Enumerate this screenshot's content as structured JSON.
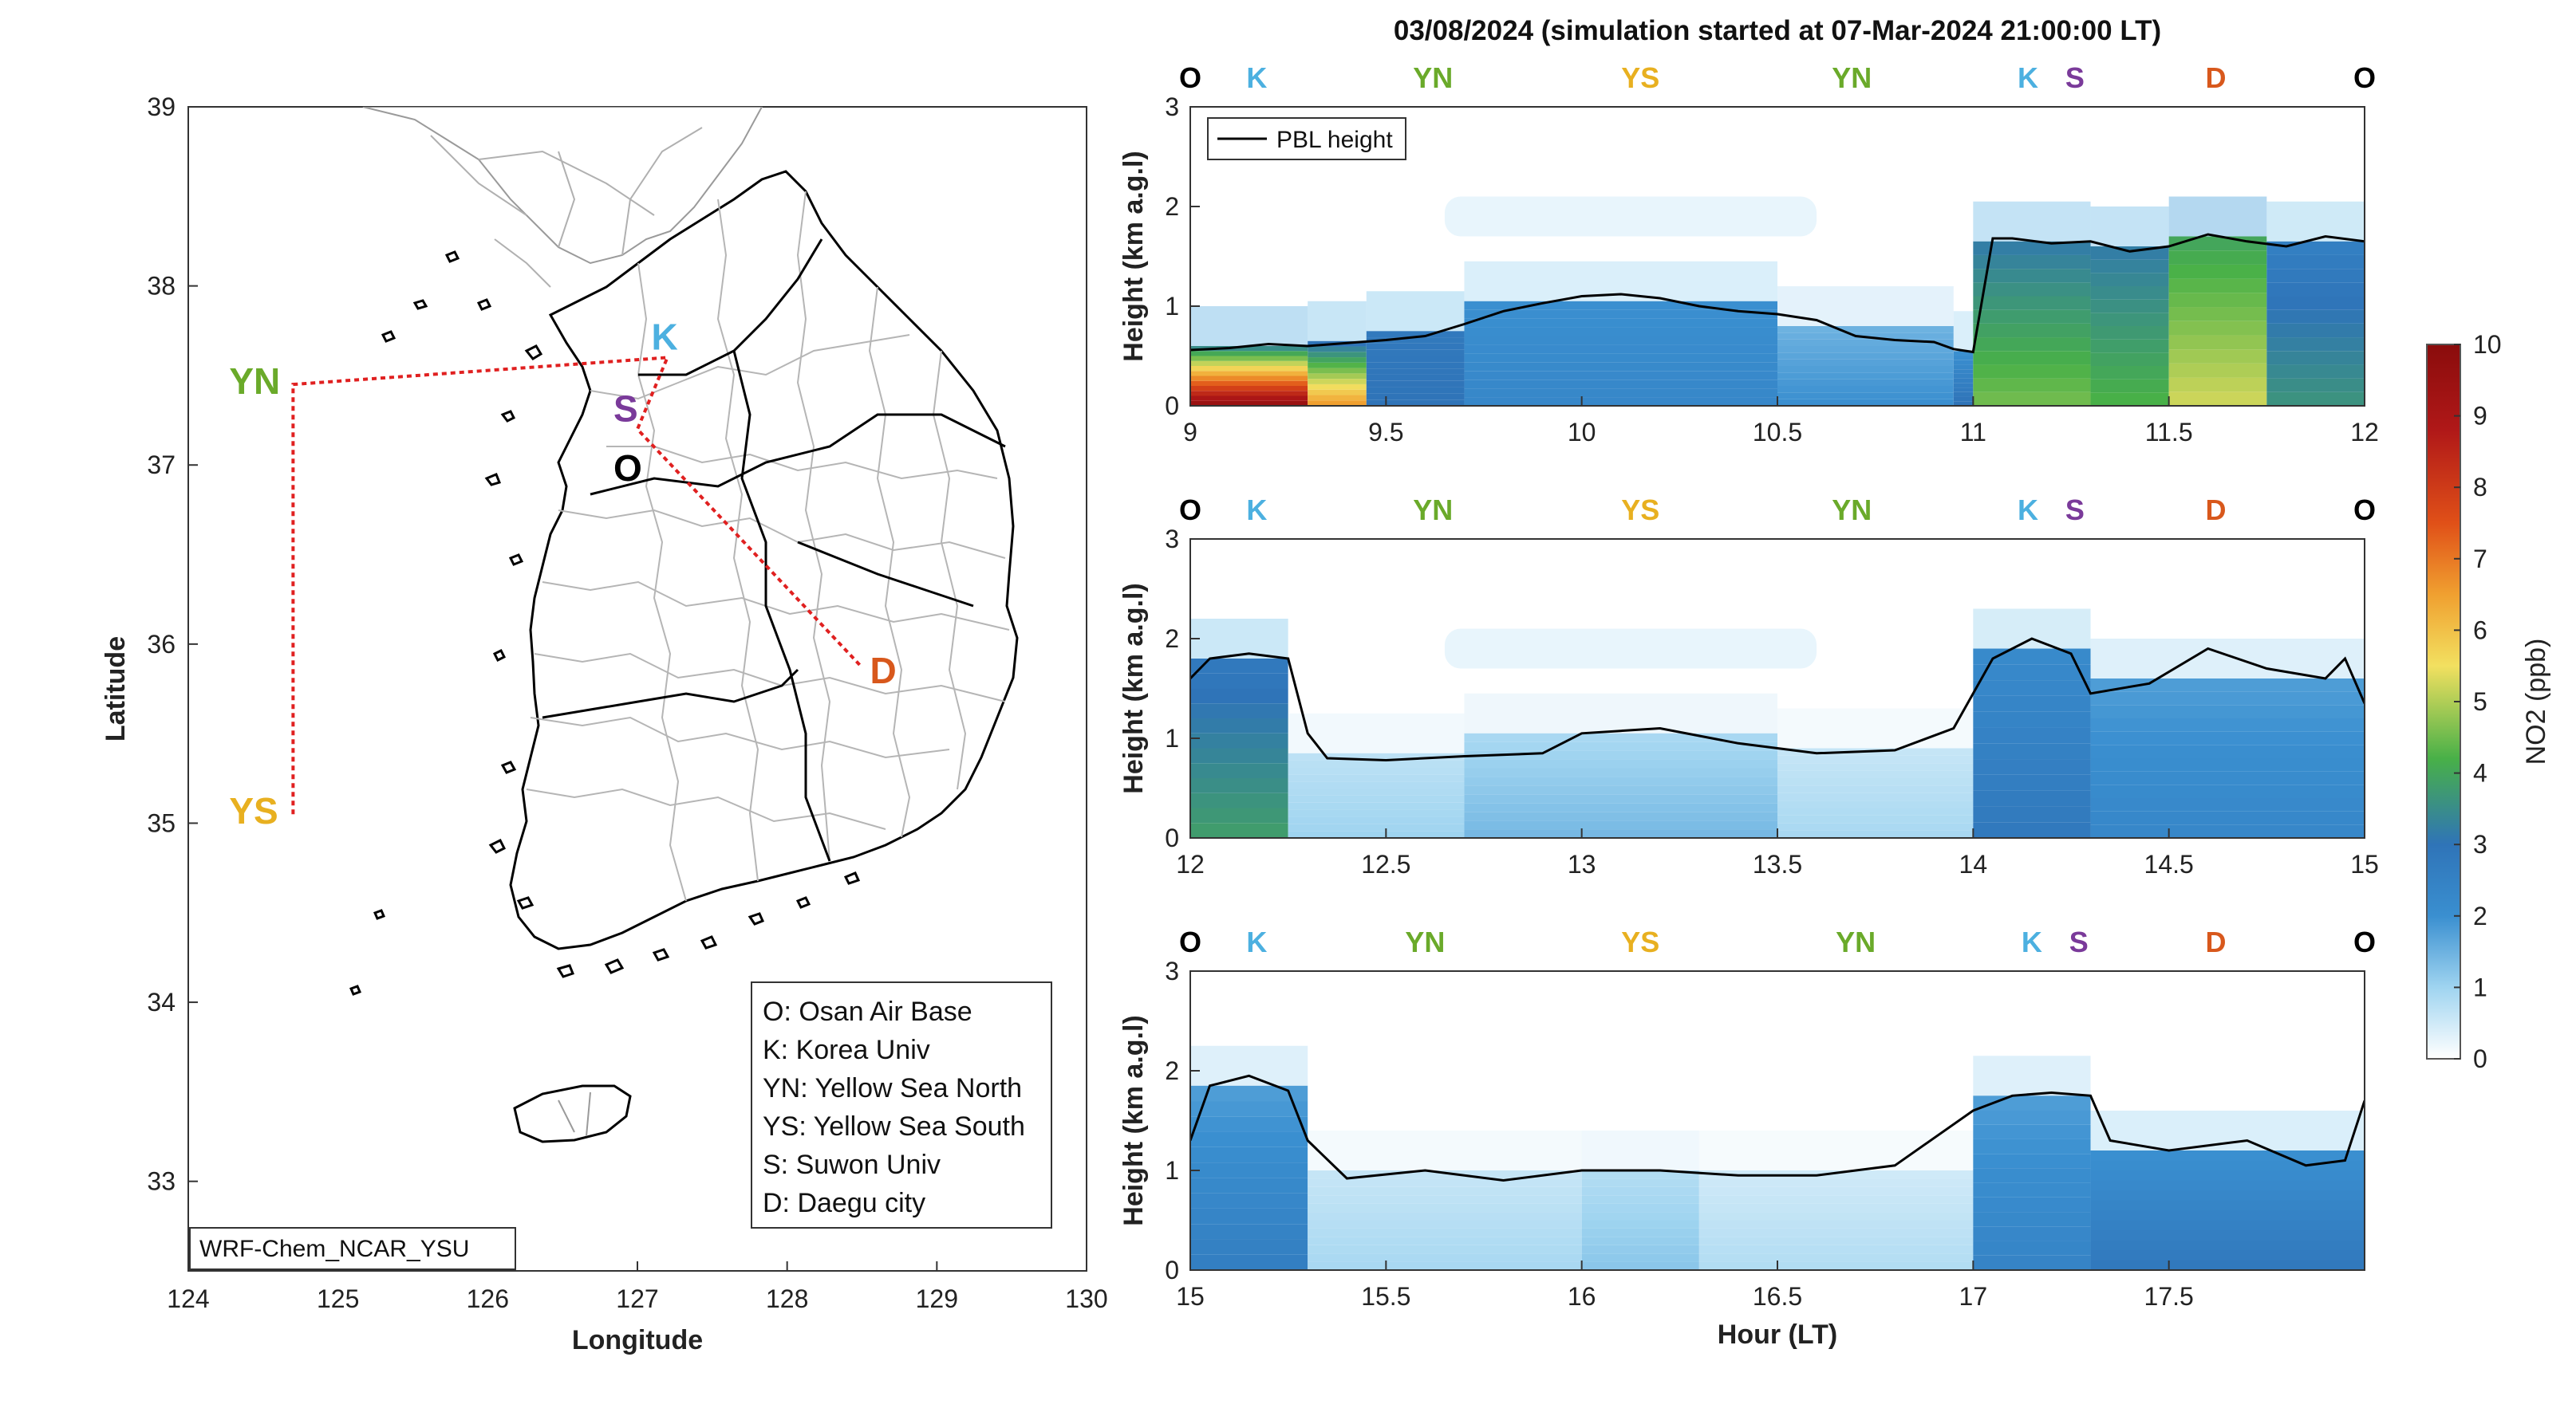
{
  "figure": {
    "title": "03/08/2024 (simulation started at 07-Mar-2024 21:00:00 LT)",
    "model_label": "WRF-Chem_NCAR_YSU"
  },
  "map": {
    "xlabel": "Longitude",
    "ylabel": "Latitude",
    "xlim": [
      124,
      130
    ],
    "ylim": [
      32.5,
      39
    ],
    "xticks": [
      "124",
      "125",
      "126",
      "127",
      "128",
      "129",
      "130"
    ],
    "yticks": [
      "33",
      "34",
      "35",
      "36",
      "37",
      "38",
      "39"
    ],
    "sites": [
      {
        "code": "YN",
        "name": "Yellow Sea North",
        "color": "#6aaa2a",
        "lon": 124.7,
        "lat": 37.45
      },
      {
        "code": "YS",
        "name": "Yellow Sea South",
        "color": "#e8b020",
        "lon": 124.7,
        "lat": 35.05
      },
      {
        "code": "K",
        "name": "Korea Univ",
        "color": "#4cb0e0",
        "lon": 127.2,
        "lat": 37.6
      },
      {
        "code": "S",
        "name": "Suwon Univ",
        "color": "#7a3a9a",
        "lon": 127.0,
        "lat": 37.2
      },
      {
        "code": "O",
        "name": "Osan Air Base",
        "color": "#000000",
        "lon": 127.0,
        "lat": 37.1
      },
      {
        "code": "D",
        "name": "Daegu city",
        "color": "#d8581c",
        "lon": 128.5,
        "lat": 35.87
      }
    ],
    "legend_entries": [
      "O: Osan Air Base",
      "K: Korea Univ",
      "YN: Yellow Sea North",
      "YS: Yellow Sea South",
      "S: Suwon Univ",
      "D: Daegu city"
    ],
    "route_color": "#e02020"
  },
  "chart_data": [
    {
      "type": "heatmap",
      "panel": 1,
      "xlabel": "",
      "ylabel": "Height (km a.g.l)",
      "xlim": [
        9,
        12
      ],
      "ylim": [
        0,
        3
      ],
      "xticks": [
        "9",
        "9.5",
        "10",
        "10.5",
        "11",
        "11.5",
        "12"
      ],
      "yticks": [
        "0",
        "1",
        "2",
        "3"
      ],
      "site_markers": [
        {
          "code": "O",
          "x": 9.0
        },
        {
          "code": "K",
          "x": 9.17
        },
        {
          "code": "YN",
          "x": 9.62
        },
        {
          "code": "YS",
          "x": 10.15
        },
        {
          "code": "YN",
          "x": 10.69
        },
        {
          "code": "K",
          "x": 11.14
        },
        {
          "code": "S",
          "x": 11.26
        },
        {
          "code": "D",
          "x": 11.62
        },
        {
          "code": "O",
          "x": 12.0
        }
      ],
      "series": [
        {
          "name": "PBL height",
          "x": [
            9.0,
            9.1,
            9.2,
            9.3,
            9.4,
            9.5,
            9.6,
            9.7,
            9.8,
            9.9,
            10.0,
            10.1,
            10.2,
            10.3,
            10.4,
            10.5,
            10.6,
            10.7,
            10.8,
            10.9,
            10.95,
            11.0,
            11.05,
            11.1,
            11.2,
            11.3,
            11.4,
            11.5,
            11.6,
            11.7,
            11.8,
            11.9,
            12.0
          ],
          "y": [
            0.56,
            0.58,
            0.62,
            0.6,
            0.63,
            0.66,
            0.7,
            0.82,
            0.95,
            1.03,
            1.1,
            1.12,
            1.08,
            1.0,
            0.95,
            0.92,
            0.86,
            0.7,
            0.66,
            0.64,
            0.57,
            0.54,
            1.68,
            1.68,
            1.63,
            1.65,
            1.55,
            1.6,
            1.72,
            1.65,
            1.6,
            1.7,
            1.65
          ]
        }
      ],
      "no2_columns": [
        {
          "x": [
            9.0,
            9.3
          ],
          "low": 9.5,
          "mid": 3.5,
          "top": 0.6
        },
        {
          "x": [
            9.3,
            9.45
          ],
          "low": 6.5,
          "mid": 3.0,
          "top": 0.65
        },
        {
          "x": [
            9.45,
            9.7
          ],
          "low": 3.0,
          "mid": 2.8,
          "top": 0.75
        },
        {
          "x": [
            9.7,
            10.5
          ],
          "low": 2.3,
          "mid": 2.0,
          "top": 1.05
        },
        {
          "x": [
            10.5,
            10.95
          ],
          "low": 2.0,
          "mid": 1.5,
          "top": 0.8
        },
        {
          "x": [
            10.95,
            11.0
          ],
          "low": 3.0,
          "mid": 2.0,
          "top": 0.55
        },
        {
          "x": [
            11.0,
            11.3
          ],
          "low": 4.5,
          "mid": 3.2,
          "top": 1.65
        },
        {
          "x": [
            11.3,
            11.5
          ],
          "low": 4.2,
          "mid": 3.2,
          "top": 1.6
        },
        {
          "x": [
            11.5,
            11.75
          ],
          "low": 5.2,
          "mid": 4.0,
          "top": 1.7
        },
        {
          "x": [
            11.75,
            12.0
          ],
          "low": 3.6,
          "mid": 2.6,
          "top": 1.65
        }
      ]
    },
    {
      "type": "heatmap",
      "panel": 2,
      "xlabel": "",
      "ylabel": "Height (km a.g.l)",
      "xlim": [
        12,
        15
      ],
      "ylim": [
        0,
        3
      ],
      "xticks": [
        "12",
        "12.5",
        "13",
        "13.5",
        "14",
        "14.5",
        "15"
      ],
      "yticks": [
        "0",
        "1",
        "2",
        "3"
      ],
      "site_markers": [
        {
          "code": "O",
          "x": 12.0
        },
        {
          "code": "K",
          "x": 12.17
        },
        {
          "code": "YN",
          "x": 12.62
        },
        {
          "code": "YS",
          "x": 13.15
        },
        {
          "code": "YN",
          "x": 13.69
        },
        {
          "code": "K",
          "x": 14.14
        },
        {
          "code": "S",
          "x": 14.26
        },
        {
          "code": "D",
          "x": 14.62
        },
        {
          "code": "O",
          "x": 15.0
        }
      ],
      "series": [
        {
          "name": "PBL height",
          "x": [
            12.0,
            12.05,
            12.15,
            12.25,
            12.3,
            12.35,
            12.5,
            12.7,
            12.9,
            13.0,
            13.2,
            13.4,
            13.6,
            13.8,
            13.95,
            14.05,
            14.15,
            14.25,
            14.3,
            14.45,
            14.6,
            14.75,
            14.9,
            14.95,
            15.0
          ],
          "y": [
            1.6,
            1.8,
            1.85,
            1.8,
            1.05,
            0.8,
            0.78,
            0.82,
            0.85,
            1.05,
            1.1,
            0.95,
            0.85,
            0.88,
            1.1,
            1.8,
            2.0,
            1.85,
            1.45,
            1.55,
            1.9,
            1.7,
            1.6,
            1.8,
            1.35
          ]
        }
      ],
      "no2_columns": [
        {
          "x": [
            12.0,
            12.25
          ],
          "low": 3.8,
          "mid": 2.8,
          "top": 1.8
        },
        {
          "x": [
            12.25,
            12.7
          ],
          "low": 1.0,
          "mid": 0.7,
          "top": 0.85
        },
        {
          "x": [
            12.7,
            13.5
          ],
          "low": 1.4,
          "mid": 0.9,
          "top": 1.05
        },
        {
          "x": [
            13.5,
            14.0
          ],
          "low": 0.9,
          "mid": 0.6,
          "top": 0.9
        },
        {
          "x": [
            14.0,
            14.3
          ],
          "low": 2.8,
          "mid": 2.2,
          "top": 1.9
        },
        {
          "x": [
            14.3,
            15.0
          ],
          "low": 2.3,
          "mid": 1.8,
          "top": 1.6
        }
      ]
    },
    {
      "type": "heatmap",
      "panel": 3,
      "xlabel": "Hour (LT)",
      "ylabel": "Height (km a.g.l)",
      "xlim": [
        15,
        18
      ],
      "ylim": [
        0,
        3
      ],
      "xticks": [
        "15",
        "15.5",
        "16",
        "16.5",
        "17",
        "17.5"
      ],
      "yticks": [
        "0",
        "1",
        "2",
        "3"
      ],
      "site_markers": [
        {
          "code": "O",
          "x": 15.0
        },
        {
          "code": "K",
          "x": 15.17
        },
        {
          "code": "YN",
          "x": 15.6
        },
        {
          "code": "YS",
          "x": 16.15
        },
        {
          "code": "YN",
          "x": 16.7
        },
        {
          "code": "K",
          "x": 17.15
        },
        {
          "code": "S",
          "x": 17.27
        },
        {
          "code": "D",
          "x": 17.62
        },
        {
          "code": "O",
          "x": 18.0
        }
      ],
      "series": [
        {
          "name": "PBL height",
          "x": [
            15.0,
            15.05,
            15.15,
            15.25,
            15.3,
            15.4,
            15.6,
            15.8,
            16.0,
            16.2,
            16.4,
            16.6,
            16.8,
            17.0,
            17.1,
            17.2,
            17.3,
            17.35,
            17.5,
            17.7,
            17.85,
            17.95,
            18.0
          ],
          "y": [
            1.3,
            1.85,
            1.95,
            1.8,
            1.3,
            0.92,
            1.0,
            0.9,
            1.0,
            1.0,
            0.95,
            0.95,
            1.05,
            1.6,
            1.75,
            1.78,
            1.75,
            1.3,
            1.2,
            1.3,
            1.05,
            1.1,
            1.7
          ]
        }
      ],
      "no2_columns": [
        {
          "x": [
            15.0,
            15.3
          ],
          "low": 2.6,
          "mid": 1.8,
          "top": 1.85
        },
        {
          "x": [
            15.3,
            16.0
          ],
          "low": 0.9,
          "mid": 0.6,
          "top": 1.0
        },
        {
          "x": [
            16.0,
            16.3
          ],
          "low": 1.2,
          "mid": 0.8,
          "top": 1.0
        },
        {
          "x": [
            16.3,
            17.0
          ],
          "low": 0.8,
          "mid": 0.5,
          "top": 1.0
        },
        {
          "x": [
            17.0,
            17.3
          ],
          "low": 2.4,
          "mid": 1.8,
          "top": 1.75
        },
        {
          "x": [
            17.3,
            18.0
          ],
          "low": 2.8,
          "mid": 2.0,
          "top": 1.2
        }
      ]
    }
  ],
  "colorbar": {
    "label": "NO2 (ppb)",
    "min": 0,
    "max": 10,
    "ticks": [
      "0",
      "1",
      "2",
      "3",
      "4",
      "5",
      "6",
      "7",
      "8",
      "9",
      "10"
    ],
    "colors": [
      "#ffffff",
      "#9fd4f0",
      "#3a8fd0",
      "#2f74b8",
      "#48b048",
      "#f2e060",
      "#f0a030",
      "#e05018",
      "#b01818",
      "#8a0c0c"
    ]
  },
  "pbl_legend_label": "PBL height"
}
